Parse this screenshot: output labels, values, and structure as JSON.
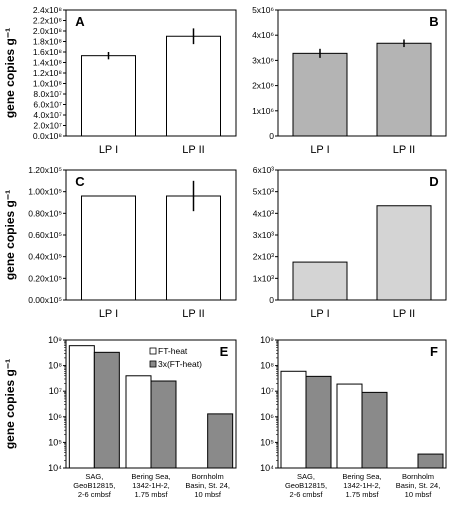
{
  "figure": {
    "ylabel": "gene copies g⁻¹"
  },
  "chart_data": [
    {
      "panel": "A",
      "type": "bar",
      "categories": [
        "LP I",
        "LP II"
      ],
      "values": [
        153000000.0,
        190000000.0
      ],
      "errors": [
        7000000.0,
        15000000.0
      ],
      "ylim": [
        0,
        240000000.0
      ],
      "ticks": [
        0,
        20000000.0,
        40000000.0,
        60000000.0,
        80000000.0,
        100000000.0,
        120000000.0,
        140000000.0,
        160000000.0,
        180000000.0,
        200000000.0,
        220000000.0,
        240000000.0
      ],
      "tick_labels": [
        "0.0x10⁸",
        "2.0x10⁷",
        "4.0x10⁷",
        "6.0x10⁷",
        "8.0x10⁷",
        "1.0x10⁸",
        "1.2x10⁸",
        "1.4x10⁸",
        "1.6x10⁸",
        "1.8x10⁸",
        "2.0x10⁸",
        "2.2x10⁸",
        "2.4x10⁸"
      ],
      "colors": [
        "#ffffff"
      ],
      "log": false
    },
    {
      "panel": "B",
      "type": "bar",
      "categories": [
        "LP I",
        "LP II"
      ],
      "values": [
        3280000.0,
        3680000.0
      ],
      "errors": [
        180000.0,
        150000.0
      ],
      "ylim": [
        0,
        5000000.0
      ],
      "ticks": [
        0,
        1000000.0,
        2000000.0,
        3000000.0,
        4000000.0,
        5000000.0
      ],
      "tick_labels": [
        "0",
        "1x10⁶",
        "2x10⁶",
        "3x10⁶",
        "4x10⁶",
        "5x10⁶"
      ],
      "colors": [
        "#b4b4b4"
      ],
      "log": false
    },
    {
      "panel": "C",
      "type": "bar",
      "categories": [
        "LP I",
        "LP II"
      ],
      "values": [
        96000.0,
        96000.0
      ],
      "errors": [
        0,
        14000.0
      ],
      "ylim": [
        0,
        120000.0
      ],
      "ticks": [
        0,
        20000.0,
        40000.0,
        60000.0,
        80000.0,
        100000.0,
        120000.0
      ],
      "tick_labels": [
        "0.00x10⁵",
        "0.20x10⁵",
        "0.40x10⁵",
        "0.60x10⁵",
        "0.80x10⁵",
        "1.00x10⁵",
        "1.20x10⁵"
      ],
      "colors": [
        "#ffffff"
      ],
      "log": false
    },
    {
      "panel": "D",
      "type": "bar",
      "categories": [
        "LP I",
        "LP II"
      ],
      "values": [
        1750.0,
        4350.0
      ],
      "errors": [
        0,
        0
      ],
      "ylim": [
        0,
        6000.0
      ],
      "ticks": [
        0,
        1000.0,
        2000.0,
        3000.0,
        4000.0,
        5000.0,
        6000.0
      ],
      "tick_labels": [
        "0",
        "1x10³",
        "2x10³",
        "3x10³",
        "4x10³",
        "5x10³",
        "6x10³"
      ],
      "colors": [
        "#d4d4d4"
      ],
      "log": false
    },
    {
      "panel": "E",
      "type": "bar",
      "categories": [
        "SAG,\nGeoB12815,\n2-6 cmbsf",
        "Bering Sea,\n1342-1H-2,\n1.75 mbsf",
        "Bornholm\nBasin, St. 24,\n10 mbsf"
      ],
      "series": [
        {
          "name": "FT-heat",
          "values": [
            600000000.0,
            40000000.0,
            null
          ]
        },
        {
          "name": "3x(FT-heat)",
          "values": [
            330000000.0,
            25000000.0,
            1300000.0
          ]
        }
      ],
      "colors": [
        "#ffffff",
        "#8a8a8a"
      ],
      "ylim": [
        10000.0,
        1000000000.0
      ],
      "ticks": [
        10000.0,
        100000.0,
        1000000.0,
        10000000.0,
        100000000.0,
        1000000000.0
      ],
      "tick_labels": [
        "10⁴",
        "10⁵",
        "10⁶",
        "10⁷",
        "10⁸",
        "10⁹"
      ],
      "legend": "top-middle",
      "log": true
    },
    {
      "panel": "F",
      "type": "bar",
      "categories": [
        "SAG,\nGeoB12815,\n2-6 cmbsf",
        "Bering Sea,\n1342-1H-2,\n1.75 mbsf",
        "Bornholm\nBasin, St. 24,\n10 mbsf"
      ],
      "series": [
        {
          "name": "",
          "values": [
            60000000.0,
            19000000.0,
            null
          ]
        },
        {
          "name": "",
          "values": [
            38000000.0,
            9000000.0,
            35000.0
          ]
        }
      ],
      "colors": [
        "#ffffff",
        "#8a8a8a"
      ],
      "ylim": [
        10000.0,
        1000000000.0
      ],
      "ticks": [
        10000.0,
        100000.0,
        1000000.0,
        10000000.0,
        100000000.0,
        1000000000.0
      ],
      "tick_labels": [
        "10⁴",
        "10⁵",
        "10⁶",
        "10⁷",
        "10⁸",
        "10⁹"
      ],
      "log": true
    }
  ]
}
